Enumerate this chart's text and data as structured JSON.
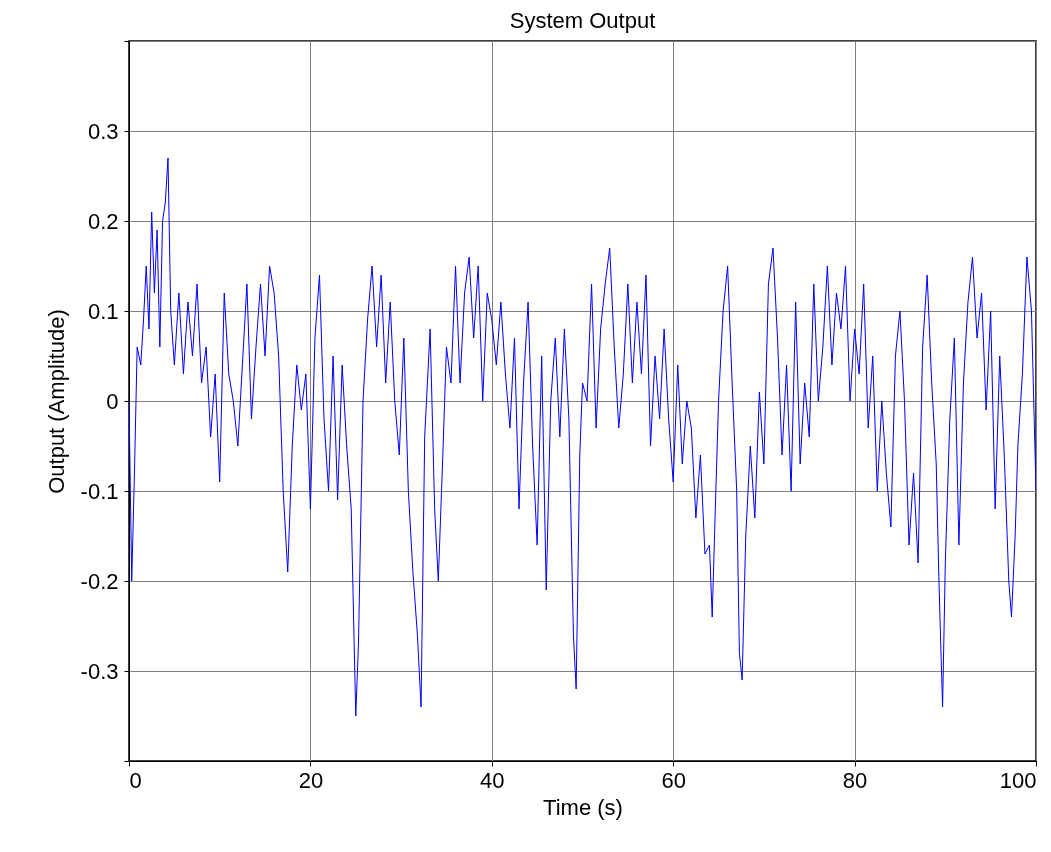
{
  "chart_data": {
    "type": "line",
    "title": "System Output",
    "xlabel": "Time (s)",
    "ylabel": "Output (Amplitude)",
    "xlim": [
      0,
      100
    ],
    "xticks": [
      0,
      20,
      40,
      60,
      80,
      100
    ],
    "ylim": [
      -0.4,
      0.4
    ],
    "yticks": [
      {
        "value": -0.4,
        "label": null
      },
      -0.3,
      -0.2,
      -0.1,
      0,
      0.1,
      0.2,
      0.3,
      {
        "value": 0.4,
        "label": null
      }
    ],
    "grid": true,
    "line_style": "solid",
    "series": [
      {
        "color": "#0000ff",
        "x": [
          0,
          0.3,
          0.6,
          0.9,
          1.3,
          1.6,
          1.9,
          2.2,
          2.5,
          2.8,
          3.1,
          3.4,
          3.7,
          4.0,
          4.3,
          4.6,
          5.0,
          5.5,
          6.0,
          6.5,
          7.0,
          7.5,
          8.0,
          8.5,
          9.0,
          9.5,
          10.0,
          10.5,
          11.0,
          11.5,
          12.0,
          12.5,
          13.0,
          13.5,
          14.0,
          14.5,
          15.0,
          15.5,
          16.0,
          16.5,
          17.0,
          17.5,
          18.0,
          18.5,
          19.0,
          19.5,
          20.0,
          20.5,
          21.0,
          21.5,
          22.0,
          22.5,
          23.0,
          23.5,
          24.0,
          24.5,
          25.0,
          25.3,
          25.8,
          26.3,
          26.8,
          27.3,
          27.8,
          28.3,
          28.8,
          29.3,
          29.8,
          30.3,
          30.8,
          31.3,
          31.8,
          32.2,
          32.6,
          33.2,
          33.7,
          34.1,
          34.6,
          35.0,
          35.5,
          36.0,
          36.5,
          37.0,
          37.5,
          38.0,
          38.5,
          39.0,
          39.5,
          40.0,
          40.5,
          41.0,
          41.5,
          42.0,
          42.5,
          43.0,
          43.5,
          44.0,
          44.5,
          45.0,
          45.5,
          46.0,
          46.5,
          47.0,
          47.5,
          48.0,
          48.5,
          49.0,
          49.3,
          49.7,
          50.0,
          50.5,
          51.0,
          51.5,
          52.0,
          52.5,
          53.0,
          53.5,
          54.0,
          54.5,
          55.0,
          55.5,
          56.0,
          56.5,
          57.0,
          57.5,
          58.0,
          58.5,
          59.0,
          59.5,
          60.0,
          60.5,
          61.0,
          61.5,
          62.0,
          62.5,
          63.0,
          63.5,
          64.0,
          64.3,
          64.7,
          65.0,
          65.5,
          66.0,
          66.5,
          67.0,
          67.3,
          67.6,
          68.0,
          68.5,
          69.0,
          69.5,
          70.0,
          70.5,
          71.0,
          71.5,
          72.0,
          72.5,
          73.0,
          73.5,
          74.0,
          74.5,
          75.0,
          75.5,
          76.0,
          76.5,
          77.0,
          77.5,
          78.0,
          78.5,
          79.0,
          79.5,
          80.0,
          80.5,
          81.0,
          81.5,
          82.0,
          82.5,
          83.0,
          83.5,
          84.0,
          84.5,
          85.0,
          85.5,
          86.0,
          86.5,
          87.0,
          87.5,
          88.0,
          88.5,
          89.0,
          89.3,
          89.7,
          90.0,
          90.5,
          91.0,
          91.5,
          92.0,
          92.5,
          93.0,
          93.5,
          94.0,
          94.5,
          95.0,
          95.5,
          96.0,
          96.5,
          97.0,
          97.3,
          97.7,
          98.0,
          98.5,
          99.0,
          99.5,
          100
        ],
        "values": [
          0.0,
          -0.2,
          -0.08,
          0.06,
          0.04,
          0.09,
          0.15,
          0.08,
          0.21,
          0.12,
          0.19,
          0.06,
          0.2,
          0.22,
          0.27,
          0.1,
          0.04,
          0.12,
          0.03,
          0.11,
          0.05,
          0.13,
          0.02,
          0.06,
          -0.04,
          0.03,
          -0.09,
          0.12,
          0.03,
          0.0,
          -0.05,
          0.04,
          0.13,
          -0.02,
          0.06,
          0.13,
          0.05,
          0.15,
          0.12,
          0.05,
          -0.1,
          -0.19,
          -0.05,
          0.04,
          -0.01,
          0.03,
          -0.12,
          0.07,
          0.14,
          -0.02,
          -0.1,
          0.05,
          -0.11,
          0.04,
          -0.05,
          -0.12,
          -0.35,
          -0.27,
          0.0,
          0.09,
          0.15,
          0.06,
          0.14,
          0.02,
          0.11,
          0.0,
          -0.06,
          0.07,
          -0.1,
          -0.19,
          -0.26,
          -0.34,
          -0.04,
          0.08,
          -0.12,
          -0.2,
          -0.06,
          0.06,
          0.02,
          0.15,
          0.02,
          0.12,
          0.16,
          0.07,
          0.15,
          0.0,
          0.12,
          0.09,
          0.04,
          0.11,
          0.03,
          -0.03,
          0.07,
          -0.12,
          0.02,
          0.11,
          -0.05,
          -0.16,
          0.05,
          -0.21,
          0.0,
          0.07,
          -0.04,
          0.08,
          -0.02,
          -0.26,
          -0.32,
          -0.06,
          0.02,
          0.0,
          0.13,
          -0.03,
          0.08,
          0.13,
          0.17,
          0.06,
          -0.03,
          0.03,
          0.13,
          0.02,
          0.11,
          0.03,
          0.14,
          -0.05,
          0.05,
          -0.02,
          0.08,
          -0.02,
          -0.09,
          0.04,
          -0.07,
          0.0,
          -0.03,
          -0.13,
          -0.06,
          -0.17,
          -0.16,
          -0.24,
          -0.1,
          0.0,
          0.1,
          0.15,
          0.02,
          -0.1,
          -0.28,
          -0.31,
          -0.15,
          -0.05,
          -0.13,
          0.01,
          -0.07,
          0.13,
          0.17,
          0.07,
          -0.06,
          0.04,
          -0.1,
          0.11,
          -0.07,
          0.02,
          -0.04,
          0.13,
          0.0,
          0.06,
          0.15,
          0.04,
          0.12,
          0.08,
          0.15,
          0.0,
          0.08,
          0.03,
          0.13,
          -0.03,
          0.05,
          -0.1,
          0.0,
          -0.08,
          -0.14,
          0.05,
          0.1,
          0.0,
          -0.16,
          -0.08,
          -0.18,
          0.06,
          0.14,
          0.02,
          -0.07,
          -0.2,
          -0.34,
          -0.18,
          -0.02,
          0.07,
          -0.16,
          0.02,
          0.11,
          0.16,
          0.07,
          0.12,
          -0.01,
          0.1,
          -0.12,
          0.05,
          -0.06,
          -0.2,
          -0.24,
          -0.15,
          -0.05,
          0.03,
          0.16,
          0.1,
          -0.1
        ]
      }
    ]
  }
}
